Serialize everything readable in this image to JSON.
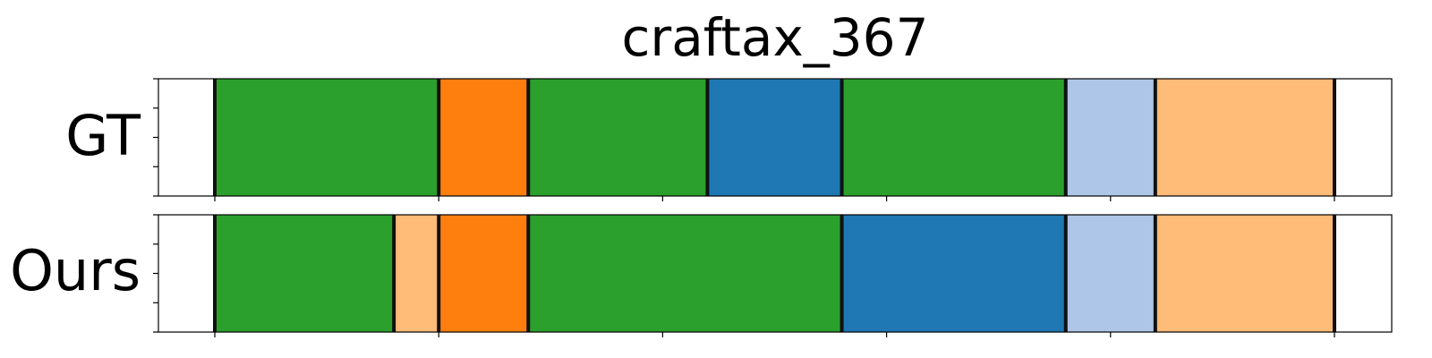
{
  "chart_data": {
    "type": "segmentation-timeline",
    "title": "craftax_367",
    "x_range": [
      0,
      1375
    ],
    "tick_positions": [
      0,
      250,
      500,
      750,
      1000,
      1250
    ],
    "rows": [
      {
        "label": "GT",
        "segments": [
          {
            "start": 0,
            "end": 250,
            "color": "#2ca02c"
          },
          {
            "start": 250,
            "end": 350,
            "color": "#ff7f0e"
          },
          {
            "start": 350,
            "end": 550,
            "color": "#2ca02c"
          },
          {
            "start": 550,
            "end": 700,
            "color": "#1f77b4"
          },
          {
            "start": 700,
            "end": 950,
            "color": "#2ca02c"
          },
          {
            "start": 950,
            "end": 1050,
            "color": "#aec7e8"
          },
          {
            "start": 1050,
            "end": 1250,
            "color": "#ffbb78"
          }
        ]
      },
      {
        "label": "Ours",
        "segments": [
          {
            "start": 0,
            "end": 200,
            "color": "#2ca02c"
          },
          {
            "start": 200,
            "end": 250,
            "color": "#ffbb78"
          },
          {
            "start": 250,
            "end": 350,
            "color": "#ff7f0e"
          },
          {
            "start": 350,
            "end": 700,
            "color": "#2ca02c"
          },
          {
            "start": 700,
            "end": 950,
            "color": "#1f77b4"
          },
          {
            "start": 950,
            "end": 1050,
            "color": "#aec7e8"
          },
          {
            "start": 1050,
            "end": 1250,
            "color": "#ffbb78"
          }
        ]
      }
    ]
  }
}
